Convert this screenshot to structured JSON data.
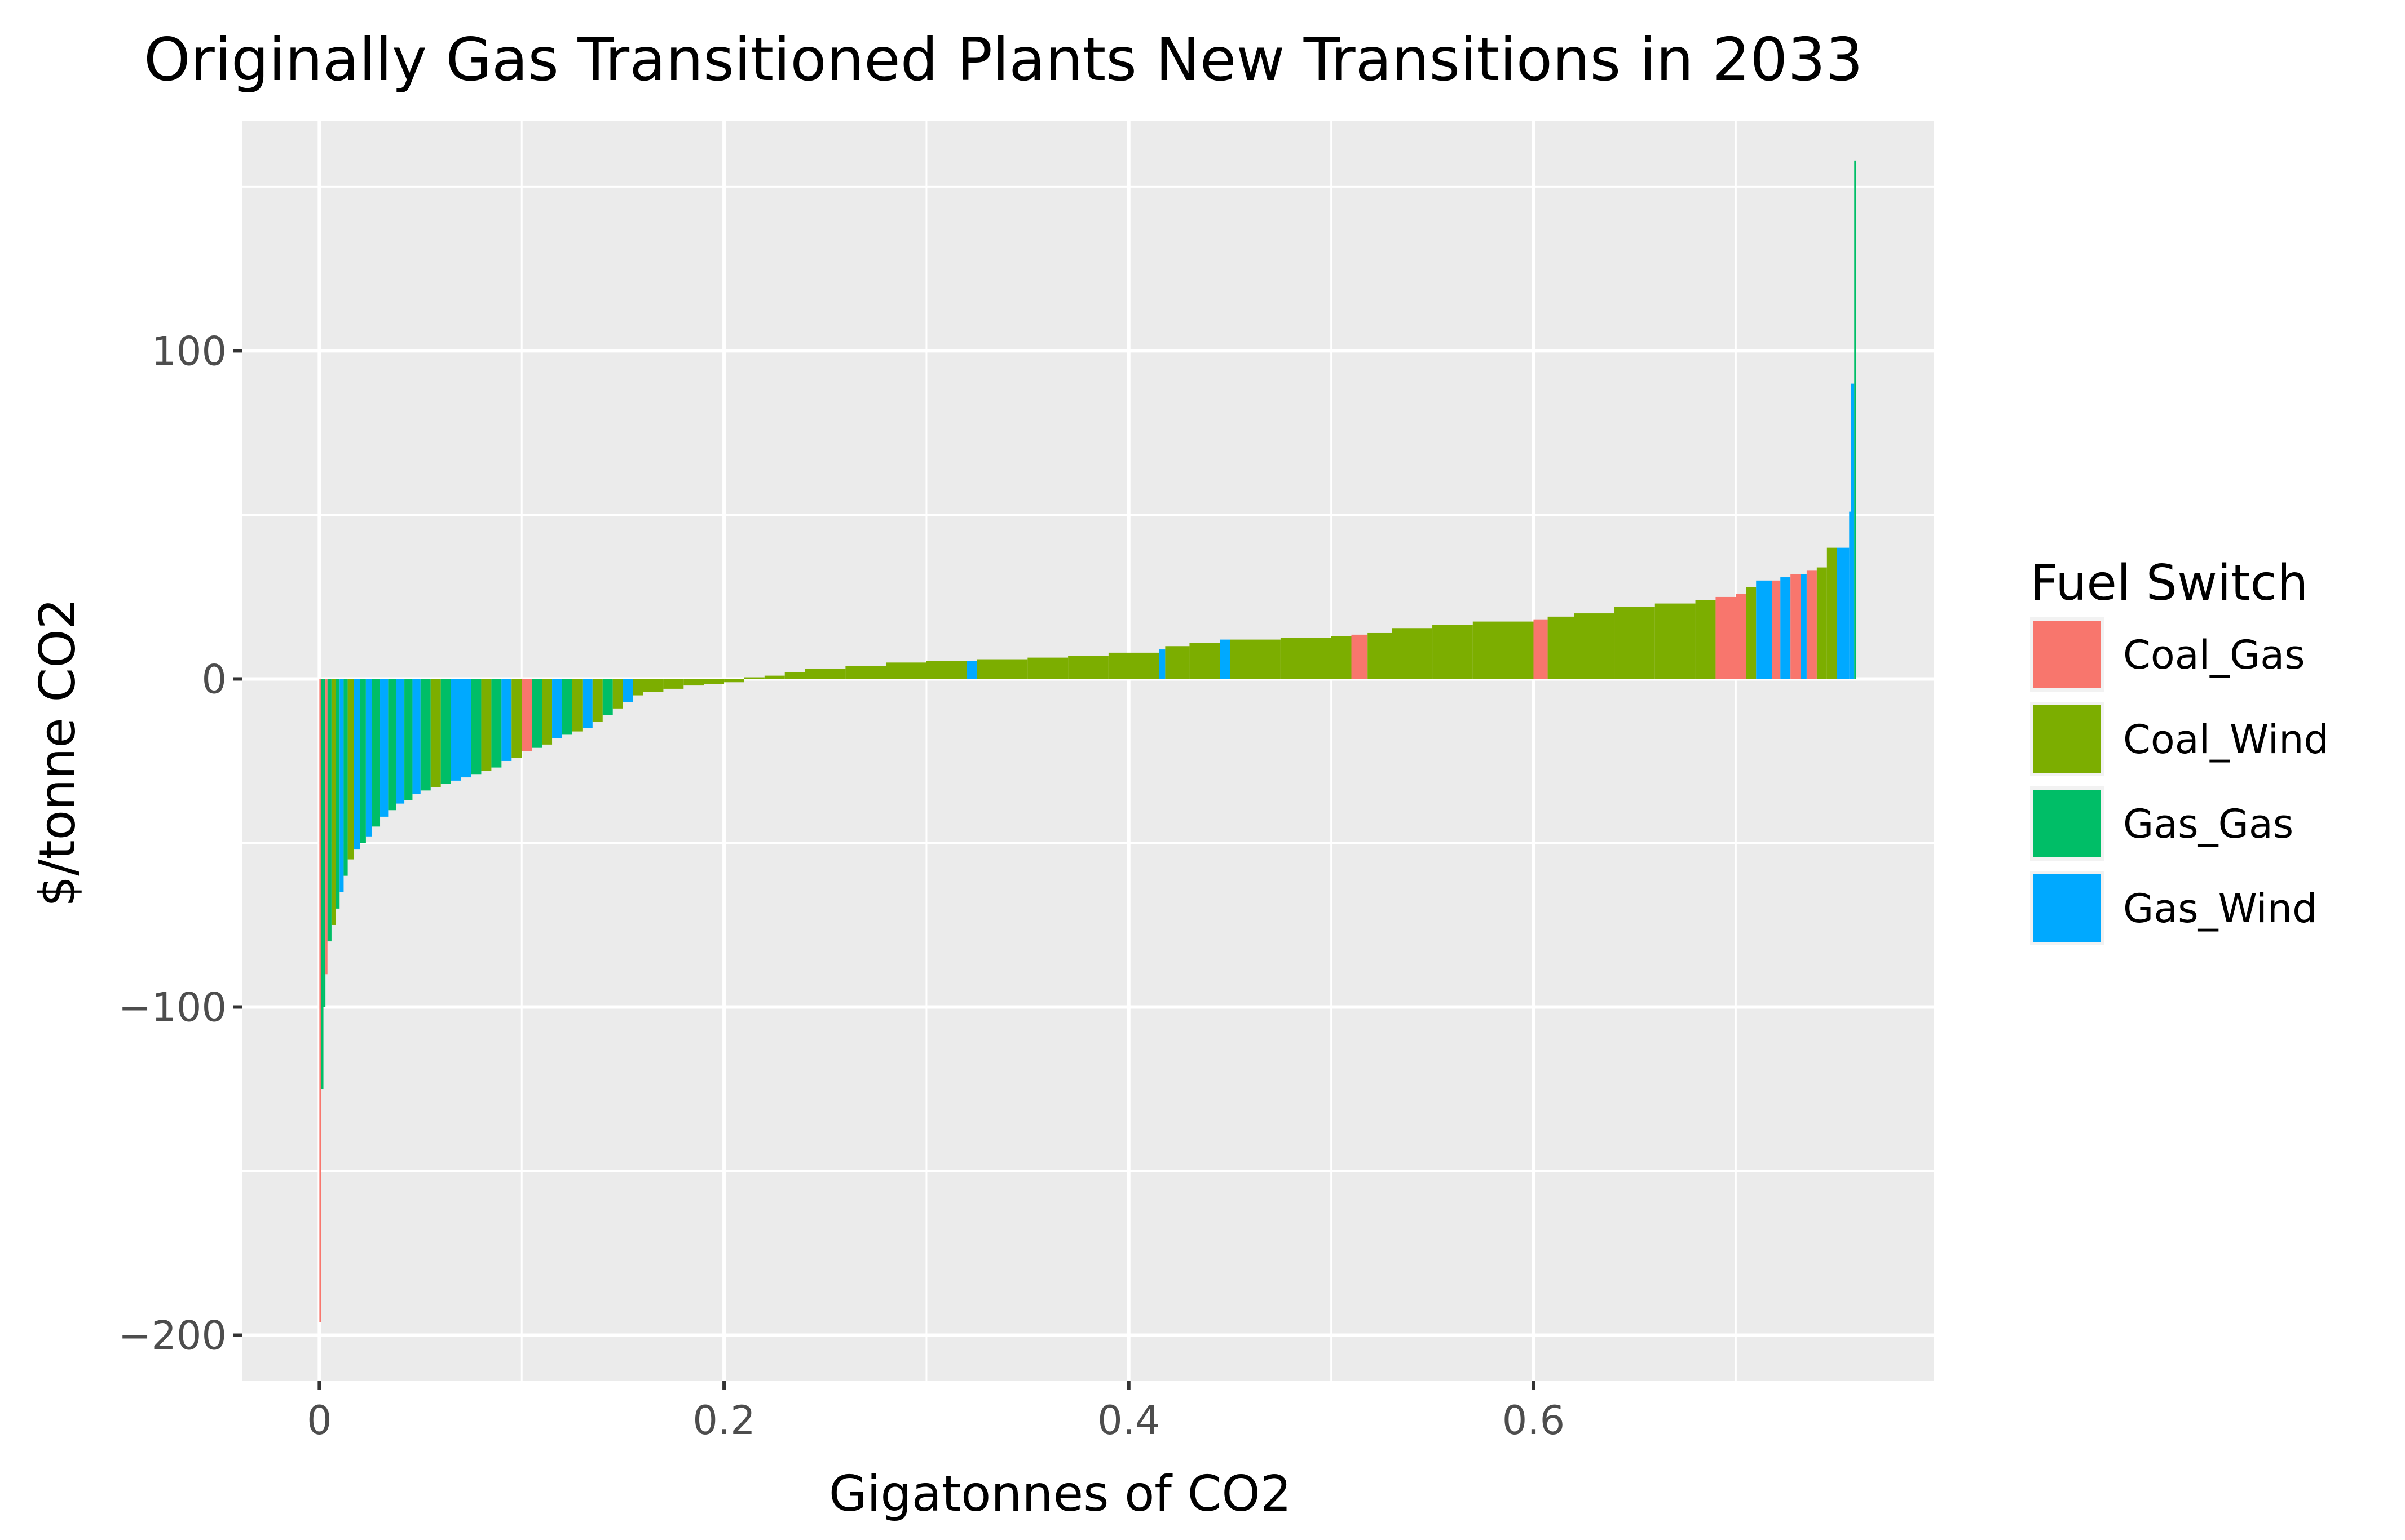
{
  "chart_data": {
    "type": "bar",
    "title": "Originally Gas Transitioned Plants New Transitions in 2033",
    "xlabel": "Gigatonnes of CO2",
    "ylabel": "$/tonne CO2",
    "xlim": [
      -0.038,
      0.798
    ],
    "ylim": [
      -214,
      170
    ],
    "x_ticks": [
      0,
      0.2,
      0.4,
      0.6
    ],
    "x_tick_labels": [
      "0",
      "0.2",
      "0.4",
      "0.6"
    ],
    "y_ticks": [
      -200,
      -100,
      0,
      100
    ],
    "y_tick_labels": [
      "−200",
      "−100",
      "0",
      "100"
    ],
    "grid": true,
    "legend": {
      "title": "Fuel Switch",
      "position": "right",
      "entries": [
        {
          "name": "Coal_Gas",
          "color": "#F8766D"
        },
        {
          "name": "Coal_Wind",
          "color": "#7CAE00"
        },
        {
          "name": "Gas_Gas",
          "color": "#00BE67"
        },
        {
          "name": "Gas_Wind",
          "color": "#00A9FF"
        }
      ]
    },
    "series_colors": {
      "Coal_Gas": "#F8766D",
      "Coal_Wind": "#7CAE00",
      "Gas_Gas": "#00BE67",
      "Gas_Wind": "#00A9FF"
    },
    "bars": [
      {
        "x0": 0.0,
        "x1": 0.001,
        "y": -196,
        "type": "Coal_Gas"
      },
      {
        "x0": 0.001,
        "x1": 0.002,
        "y": -125,
        "type": "Gas_Gas"
      },
      {
        "x0": 0.002,
        "x1": 0.003,
        "y": -100,
        "type": "Gas_Gas"
      },
      {
        "x0": 0.003,
        "x1": 0.004,
        "y": -90,
        "type": "Coal_Gas"
      },
      {
        "x0": 0.004,
        "x1": 0.006,
        "y": -80,
        "type": "Gas_Gas"
      },
      {
        "x0": 0.006,
        "x1": 0.008,
        "y": -75,
        "type": "Coal_Wind"
      },
      {
        "x0": 0.008,
        "x1": 0.01,
        "y": -70,
        "type": "Gas_Gas"
      },
      {
        "x0": 0.01,
        "x1": 0.012,
        "y": -65,
        "type": "Gas_Wind"
      },
      {
        "x0": 0.012,
        "x1": 0.014,
        "y": -60,
        "type": "Gas_Gas"
      },
      {
        "x0": 0.014,
        "x1": 0.017,
        "y": -55,
        "type": "Coal_Wind"
      },
      {
        "x0": 0.017,
        "x1": 0.02,
        "y": -52,
        "type": "Gas_Wind"
      },
      {
        "x0": 0.02,
        "x1": 0.023,
        "y": -50,
        "type": "Gas_Gas"
      },
      {
        "x0": 0.023,
        "x1": 0.026,
        "y": -48,
        "type": "Gas_Wind"
      },
      {
        "x0": 0.026,
        "x1": 0.03,
        "y": -45,
        "type": "Gas_Gas"
      },
      {
        "x0": 0.03,
        "x1": 0.034,
        "y": -42,
        "type": "Gas_Wind"
      },
      {
        "x0": 0.034,
        "x1": 0.038,
        "y": -40,
        "type": "Gas_Gas"
      },
      {
        "x0": 0.038,
        "x1": 0.042,
        "y": -38,
        "type": "Gas_Wind"
      },
      {
        "x0": 0.042,
        "x1": 0.046,
        "y": -37,
        "type": "Gas_Gas"
      },
      {
        "x0": 0.046,
        "x1": 0.05,
        "y": -35,
        "type": "Gas_Wind"
      },
      {
        "x0": 0.05,
        "x1": 0.055,
        "y": -34,
        "type": "Gas_Gas"
      },
      {
        "x0": 0.055,
        "x1": 0.06,
        "y": -33,
        "type": "Coal_Wind"
      },
      {
        "x0": 0.06,
        "x1": 0.065,
        "y": -32,
        "type": "Gas_Gas"
      },
      {
        "x0": 0.065,
        "x1": 0.07,
        "y": -31,
        "type": "Gas_Wind"
      },
      {
        "x0": 0.07,
        "x1": 0.075,
        "y": -30,
        "type": "Gas_Wind"
      },
      {
        "x0": 0.075,
        "x1": 0.08,
        "y": -29,
        "type": "Gas_Gas"
      },
      {
        "x0": 0.08,
        "x1": 0.085,
        "y": -28,
        "type": "Coal_Wind"
      },
      {
        "x0": 0.085,
        "x1": 0.09,
        "y": -27,
        "type": "Gas_Gas"
      },
      {
        "x0": 0.09,
        "x1": 0.095,
        "y": -25,
        "type": "Gas_Wind"
      },
      {
        "x0": 0.095,
        "x1": 0.1,
        "y": -24,
        "type": "Coal_Wind"
      },
      {
        "x0": 0.1,
        "x1": 0.105,
        "y": -22,
        "type": "Coal_Gas"
      },
      {
        "x0": 0.105,
        "x1": 0.11,
        "y": -21,
        "type": "Gas_Gas"
      },
      {
        "x0": 0.11,
        "x1": 0.115,
        "y": -20,
        "type": "Coal_Wind"
      },
      {
        "x0": 0.115,
        "x1": 0.12,
        "y": -18,
        "type": "Gas_Wind"
      },
      {
        "x0": 0.12,
        "x1": 0.125,
        "y": -17,
        "type": "Gas_Gas"
      },
      {
        "x0": 0.125,
        "x1": 0.13,
        "y": -16,
        "type": "Coal_Wind"
      },
      {
        "x0": 0.13,
        "x1": 0.135,
        "y": -15,
        "type": "Gas_Wind"
      },
      {
        "x0": 0.135,
        "x1": 0.14,
        "y": -13,
        "type": "Coal_Wind"
      },
      {
        "x0": 0.14,
        "x1": 0.145,
        "y": -11,
        "type": "Gas_Gas"
      },
      {
        "x0": 0.145,
        "x1": 0.15,
        "y": -9,
        "type": "Coal_Wind"
      },
      {
        "x0": 0.15,
        "x1": 0.155,
        "y": -7,
        "type": "Gas_Wind"
      },
      {
        "x0": 0.155,
        "x1": 0.16,
        "y": -5,
        "type": "Coal_Wind"
      },
      {
        "x0": 0.16,
        "x1": 0.17,
        "y": -4,
        "type": "Coal_Wind"
      },
      {
        "x0": 0.17,
        "x1": 0.18,
        "y": -3,
        "type": "Coal_Wind"
      },
      {
        "x0": 0.18,
        "x1": 0.19,
        "y": -2,
        "type": "Coal_Wind"
      },
      {
        "x0": 0.19,
        "x1": 0.2,
        "y": -1.5,
        "type": "Coal_Wind"
      },
      {
        "x0": 0.2,
        "x1": 0.21,
        "y": -1,
        "type": "Coal_Wind"
      },
      {
        "x0": 0.21,
        "x1": 0.22,
        "y": 0.5,
        "type": "Coal_Wind"
      },
      {
        "x0": 0.22,
        "x1": 0.23,
        "y": 1,
        "type": "Coal_Wind"
      },
      {
        "x0": 0.23,
        "x1": 0.24,
        "y": 2,
        "type": "Coal_Wind"
      },
      {
        "x0": 0.24,
        "x1": 0.26,
        "y": 3,
        "type": "Coal_Wind"
      },
      {
        "x0": 0.26,
        "x1": 0.28,
        "y": 4,
        "type": "Coal_Wind"
      },
      {
        "x0": 0.28,
        "x1": 0.3,
        "y": 5,
        "type": "Coal_Wind"
      },
      {
        "x0": 0.3,
        "x1": 0.32,
        "y": 5.5,
        "type": "Coal_Wind"
      },
      {
        "x0": 0.32,
        "x1": 0.325,
        "y": 5.5,
        "type": "Gas_Wind"
      },
      {
        "x0": 0.325,
        "x1": 0.35,
        "y": 6,
        "type": "Coal_Wind"
      },
      {
        "x0": 0.35,
        "x1": 0.37,
        "y": 6.5,
        "type": "Coal_Wind"
      },
      {
        "x0": 0.37,
        "x1": 0.39,
        "y": 7,
        "type": "Coal_Wind"
      },
      {
        "x0": 0.39,
        "x1": 0.415,
        "y": 8,
        "type": "Coal_Wind"
      },
      {
        "x0": 0.415,
        "x1": 0.418,
        "y": 9,
        "type": "Gas_Wind"
      },
      {
        "x0": 0.418,
        "x1": 0.43,
        "y": 10,
        "type": "Coal_Wind"
      },
      {
        "x0": 0.43,
        "x1": 0.445,
        "y": 11,
        "type": "Coal_Wind"
      },
      {
        "x0": 0.445,
        "x1": 0.45,
        "y": 12,
        "type": "Gas_Wind"
      },
      {
        "x0": 0.45,
        "x1": 0.475,
        "y": 12,
        "type": "Coal_Wind"
      },
      {
        "x0": 0.475,
        "x1": 0.5,
        "y": 12.5,
        "type": "Coal_Wind"
      },
      {
        "x0": 0.5,
        "x1": 0.51,
        "y": 13,
        "type": "Coal_Wind"
      },
      {
        "x0": 0.51,
        "x1": 0.518,
        "y": 13.5,
        "type": "Coal_Gas"
      },
      {
        "x0": 0.518,
        "x1": 0.53,
        "y": 14,
        "type": "Coal_Wind"
      },
      {
        "x0": 0.53,
        "x1": 0.55,
        "y": 15.5,
        "type": "Coal_Wind"
      },
      {
        "x0": 0.55,
        "x1": 0.57,
        "y": 16.5,
        "type": "Coal_Wind"
      },
      {
        "x0": 0.57,
        "x1": 0.6,
        "y": 17.5,
        "type": "Coal_Wind"
      },
      {
        "x0": 0.6,
        "x1": 0.607,
        "y": 18,
        "type": "Coal_Gas"
      },
      {
        "x0": 0.607,
        "x1": 0.62,
        "y": 19,
        "type": "Coal_Wind"
      },
      {
        "x0": 0.62,
        "x1": 0.64,
        "y": 20,
        "type": "Coal_Wind"
      },
      {
        "x0": 0.64,
        "x1": 0.66,
        "y": 22,
        "type": "Coal_Wind"
      },
      {
        "x0": 0.66,
        "x1": 0.68,
        "y": 23,
        "type": "Coal_Wind"
      },
      {
        "x0": 0.68,
        "x1": 0.69,
        "y": 24,
        "type": "Coal_Wind"
      },
      {
        "x0": 0.69,
        "x1": 0.7,
        "y": 25,
        "type": "Coal_Gas"
      },
      {
        "x0": 0.7,
        "x1": 0.705,
        "y": 26,
        "type": "Coal_Gas"
      },
      {
        "x0": 0.705,
        "x1": 0.71,
        "y": 28,
        "type": "Coal_Wind"
      },
      {
        "x0": 0.71,
        "x1": 0.718,
        "y": 30,
        "type": "Gas_Wind"
      },
      {
        "x0": 0.718,
        "x1": 0.722,
        "y": 30,
        "type": "Coal_Gas"
      },
      {
        "x0": 0.722,
        "x1": 0.727,
        "y": 31,
        "type": "Gas_Wind"
      },
      {
        "x0": 0.727,
        "x1": 0.732,
        "y": 32,
        "type": "Coal_Gas"
      },
      {
        "x0": 0.732,
        "x1": 0.735,
        "y": 32,
        "type": "Gas_Wind"
      },
      {
        "x0": 0.735,
        "x1": 0.74,
        "y": 33,
        "type": "Coal_Gas"
      },
      {
        "x0": 0.74,
        "x1": 0.745,
        "y": 34,
        "type": "Coal_Wind"
      },
      {
        "x0": 0.745,
        "x1": 0.75,
        "y": 40,
        "type": "Coal_Wind"
      },
      {
        "x0": 0.75,
        "x1": 0.756,
        "y": 40,
        "type": "Gas_Wind"
      },
      {
        "x0": 0.756,
        "x1": 0.757,
        "y": 51,
        "type": "Gas_Wind"
      },
      {
        "x0": 0.757,
        "x1": 0.7585,
        "y": 90,
        "type": "Gas_Wind"
      },
      {
        "x0": 0.7585,
        "x1": 0.7595,
        "y": 158,
        "type": "Gas_Gas"
      }
    ]
  }
}
